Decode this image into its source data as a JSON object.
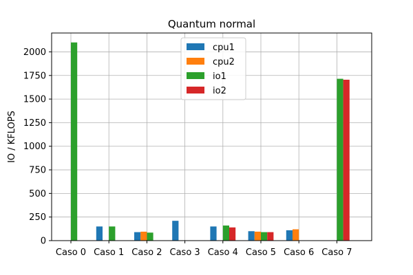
{
  "chart_data": {
    "type": "bar",
    "title": "Quantum normal",
    "xlabel": "",
    "ylabel": "IO / KFLOPS",
    "categories": [
      "Caso 0",
      "Caso 1",
      "Caso 2",
      "Caso 3",
      "Caso 4",
      "Caso 5",
      "Caso 6",
      "Caso 7"
    ],
    "series": [
      {
        "name": "cpu1",
        "color": "#1f77b4",
        "values": [
          0,
          150,
          90,
          210,
          150,
          100,
          110,
          0
        ]
      },
      {
        "name": "cpu2",
        "color": "#ff7f0e",
        "values": [
          0,
          0,
          95,
          0,
          0,
          95,
          120,
          0
        ]
      },
      {
        "name": "io1",
        "color": "#2ca02c",
        "values": [
          2100,
          150,
          85,
          0,
          160,
          90,
          0,
          1715
        ]
      },
      {
        "name": "io2",
        "color": "#d62728",
        "values": [
          0,
          0,
          0,
          0,
          140,
          90,
          0,
          1705
        ]
      }
    ],
    "ylim": [
      0,
      2200
    ],
    "yticks": [
      0,
      250,
      500,
      750,
      1000,
      1250,
      1500,
      1750,
      2000
    ],
    "grid": true,
    "legend_position": "top-center"
  }
}
